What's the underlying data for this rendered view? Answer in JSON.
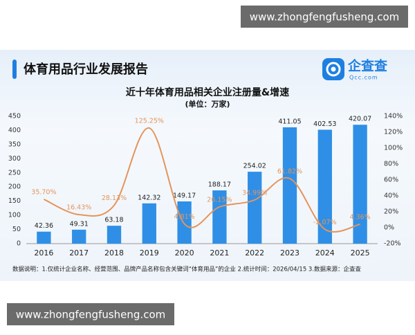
{
  "watermark_top": "www.zhongfengfusheng.com",
  "watermark_bottom": "www.zhongfengfusheng.com",
  "header": {
    "title": "体育用品行业发展报告",
    "logo_name": "企查查",
    "logo_domain": "Qcc.com"
  },
  "chart_data": {
    "type": "bar",
    "title": "近十年体育用品相关企业注册量&增速",
    "subtitle": "(单位：万家)",
    "categories": [
      "2016",
      "2017",
      "2018",
      "2019",
      "2020",
      "2021",
      "2022",
      "2023",
      "2024",
      "2025"
    ],
    "series": [
      {
        "type": "bar",
        "color": "#2f8fe6",
        "values": [
          42.36,
          49.31,
          63.18,
          142.32,
          149.17,
          188.17,
          254.02,
          411.05,
          402.53,
          420.07
        ]
      },
      {
        "type": "line",
        "axis": "y2",
        "color": "#e5945a",
        "values": [
          35.7,
          16.43,
          28.13,
          125.25,
          4.81,
          26.15,
          34.99,
          61.82,
          -2.07,
          4.36
        ],
        "value_labels": [
          "35.70%",
          "16.43%",
          "28.13%",
          "125.25%",
          "4.81%",
          "26.15%",
          "34.99%",
          "61.82%",
          "-2.07%",
          "4.36%"
        ]
      }
    ],
    "ylim": [
      0,
      450
    ],
    "yticks": [
      0,
      50,
      100,
      150,
      200,
      250,
      300,
      350,
      400,
      450
    ],
    "y2lim": [
      -20,
      140
    ],
    "y2ticks": [
      {
        "value": -20,
        "label": "-20%"
      },
      {
        "value": 0,
        "label": "0%"
      },
      {
        "value": 20,
        "label": "20%"
      },
      {
        "value": 40,
        "label": "40%"
      },
      {
        "value": 60,
        "label": "60%"
      },
      {
        "value": 80,
        "label": "80%"
      },
      {
        "value": 100,
        "label": "100%"
      },
      {
        "value": 120,
        "label": "120%"
      },
      {
        "value": 140,
        "label": "140%"
      }
    ],
    "grid": false,
    "note": "数据说明：1.仅统计企业名称、经营范围、品牌产品名称包含关键词“体育用品”的企业  2.统计时间：2026/04/15  3.数据来源：企查查"
  }
}
